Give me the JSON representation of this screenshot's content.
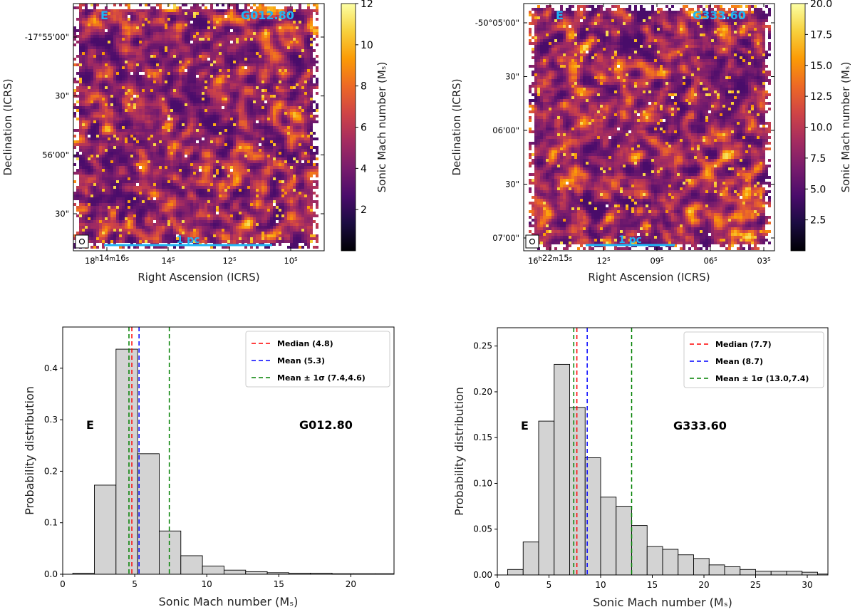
{
  "chart_data": [
    {
      "id": "map_g012",
      "type": "heatmap",
      "region_label": "E",
      "source_label": "G012.80",
      "scale_label": "1 pc",
      "xlabel": "Right Ascension (ICRS)",
      "ylabel": "Declination (ICRS)",
      "x_ticks": [
        "18h14m16s",
        "14s",
        "12s",
        "10s"
      ],
      "y_ticks": [
        "-17°55'00\"",
        "30\"",
        "56'00\"",
        "30\""
      ],
      "colorbar": {
        "label": "Sonic Mach number (M_s)",
        "min": 0,
        "max": 12,
        "ticks": [
          2,
          4,
          6,
          8,
          10,
          12
        ],
        "tick_labels": [
          "2",
          "4",
          "6",
          "8",
          "10",
          "12"
        ],
        "colormap": [
          "#000004",
          "#1b0c41",
          "#4a0c6b",
          "#781c6d",
          "#a52c60",
          "#cf4446",
          "#ed6925",
          "#fb9b06",
          "#f7d13d",
          "#fcffa4"
        ]
      },
      "seed": 7
    },
    {
      "id": "map_g333",
      "type": "heatmap",
      "region_label": "E",
      "source_label": "G333.60",
      "scale_label": "1 pc",
      "xlabel": "Right Ascension (ICRS)",
      "ylabel": "Declination (ICRS)",
      "x_ticks": [
        "16h22m15s",
        "12s",
        "09s",
        "06s",
        "03s"
      ],
      "y_ticks": [
        "-50°05'00\"",
        "30\"",
        "06'00\"",
        "30\"",
        "07'00\""
      ],
      "colorbar": {
        "label": "Sonic Mach number (M_s)",
        "min": 0,
        "max": 20,
        "ticks": [
          2.5,
          5,
          7.5,
          10,
          12.5,
          15,
          17.5,
          20
        ],
        "tick_labels": [
          "2.5",
          "5.0",
          "7.5",
          "10.0",
          "12.5",
          "15.0",
          "17.5",
          "20.0"
        ],
        "colormap": [
          "#000004",
          "#1b0c41",
          "#4a0c6b",
          "#781c6d",
          "#a52c60",
          "#cf4446",
          "#ed6925",
          "#fb9b06",
          "#f7d13d",
          "#fcffa4"
        ]
      },
      "seed": 13
    },
    {
      "id": "hist_g012",
      "type": "bar",
      "region_label": "E",
      "source_label": "G012.80",
      "xlabel": "Sonic Mach number (M_s)",
      "ylabel": "Probability distribution",
      "xlim": [
        0,
        23
      ],
      "ylim": [
        0,
        0.48
      ],
      "x_ticks": [
        0,
        5,
        10,
        15,
        20
      ],
      "y_ticks": [
        0.0,
        0.1,
        0.2,
        0.3,
        0.4
      ],
      "y_tick_labels": [
        "0.0",
        "0.1",
        "0.2",
        "0.3",
        "0.4"
      ],
      "bins": [
        {
          "x0": 0.7,
          "x1": 2.2,
          "value": 0.002
        },
        {
          "x0": 2.2,
          "x1": 3.7,
          "value": 0.173
        },
        {
          "x0": 3.7,
          "x1": 5.2,
          "value": 0.437
        },
        {
          "x0": 5.2,
          "x1": 6.7,
          "value": 0.234
        },
        {
          "x0": 6.7,
          "x1": 8.2,
          "value": 0.084
        },
        {
          "x0": 8.2,
          "x1": 9.7,
          "value": 0.036
        },
        {
          "x0": 9.7,
          "x1": 11.2,
          "value": 0.016
        },
        {
          "x0": 11.2,
          "x1": 12.7,
          "value": 0.008
        },
        {
          "x0": 12.7,
          "x1": 14.2,
          "value": 0.005
        },
        {
          "x0": 14.2,
          "x1": 15.7,
          "value": 0.003
        },
        {
          "x0": 15.7,
          "x1": 17.2,
          "value": 0.002
        },
        {
          "x0": 17.2,
          "x1": 18.7,
          "value": 0.002
        },
        {
          "x0": 18.7,
          "x1": 20.2,
          "value": 0.001
        },
        {
          "x0": 20.2,
          "x1": 21.7,
          "value": 0.001
        },
        {
          "x0": 21.7,
          "x1": 23.0,
          "value": 0.001
        }
      ],
      "lines": [
        {
          "value": 4.8,
          "color": "#ff0000",
          "label": "Median (4.8)"
        },
        {
          "value": 5.3,
          "color": "#0000ff",
          "label": "Mean    (5.3)"
        },
        {
          "value": 7.4,
          "color": "#008000",
          "label": "Mean ± 1σ (7.4,4.6)"
        },
        {
          "value": 4.6,
          "color": "#008000",
          "label": ""
        }
      ],
      "legend_position": "top-right"
    },
    {
      "id": "hist_g333",
      "type": "bar",
      "region_label": "E",
      "source_label": "G333.60",
      "xlabel": "Sonic Mach number (M_s)",
      "ylabel": "Probability distribution",
      "xlim": [
        0,
        32
      ],
      "ylim": [
        0,
        0.27
      ],
      "x_ticks": [
        0,
        5,
        10,
        15,
        20,
        25,
        30
      ],
      "y_ticks": [
        0.0,
        0.05,
        0.1,
        0.15,
        0.2,
        0.25
      ],
      "y_tick_labels": [
        "0.00",
        "0.05",
        "0.10",
        "0.15",
        "0.20",
        "0.25"
      ],
      "bins": [
        {
          "x0": 1.0,
          "x1": 2.5,
          "value": 0.006
        },
        {
          "x0": 2.5,
          "x1": 4.0,
          "value": 0.036
        },
        {
          "x0": 4.0,
          "x1": 5.5,
          "value": 0.168
        },
        {
          "x0": 5.5,
          "x1": 7.0,
          "value": 0.23
        },
        {
          "x0": 7.0,
          "x1": 8.5,
          "value": 0.183
        },
        {
          "x0": 8.5,
          "x1": 10.0,
          "value": 0.128
        },
        {
          "x0": 10.0,
          "x1": 11.5,
          "value": 0.085
        },
        {
          "x0": 11.5,
          "x1": 13.0,
          "value": 0.075
        },
        {
          "x0": 13.0,
          "x1": 14.5,
          "value": 0.054
        },
        {
          "x0": 14.5,
          "x1": 16.0,
          "value": 0.031
        },
        {
          "x0": 16.0,
          "x1": 17.5,
          "value": 0.028
        },
        {
          "x0": 17.5,
          "x1": 19.0,
          "value": 0.022
        },
        {
          "x0": 19.0,
          "x1": 20.5,
          "value": 0.018
        },
        {
          "x0": 20.5,
          "x1": 22.0,
          "value": 0.011
        },
        {
          "x0": 22.0,
          "x1": 23.5,
          "value": 0.009
        },
        {
          "x0": 23.5,
          "x1": 25.0,
          "value": 0.006
        },
        {
          "x0": 25.0,
          "x1": 26.5,
          "value": 0.004
        },
        {
          "x0": 26.5,
          "x1": 28.0,
          "value": 0.004
        },
        {
          "x0": 28.0,
          "x1": 29.5,
          "value": 0.004
        },
        {
          "x0": 29.5,
          "x1": 31.0,
          "value": 0.003
        },
        {
          "x0": 31.0,
          "x1": 32.0,
          "value": 0.001
        }
      ],
      "lines": [
        {
          "value": 7.7,
          "color": "#ff0000",
          "label": "Median (7.7)"
        },
        {
          "value": 8.7,
          "color": "#0000ff",
          "label": "Mean    (8.7)"
        },
        {
          "value": 13.0,
          "color": "#008000",
          "label": "Mean ± 1σ (13.0,7.4)"
        },
        {
          "value": 7.4,
          "color": "#008000",
          "label": ""
        }
      ],
      "legend_position": "top-right"
    }
  ]
}
